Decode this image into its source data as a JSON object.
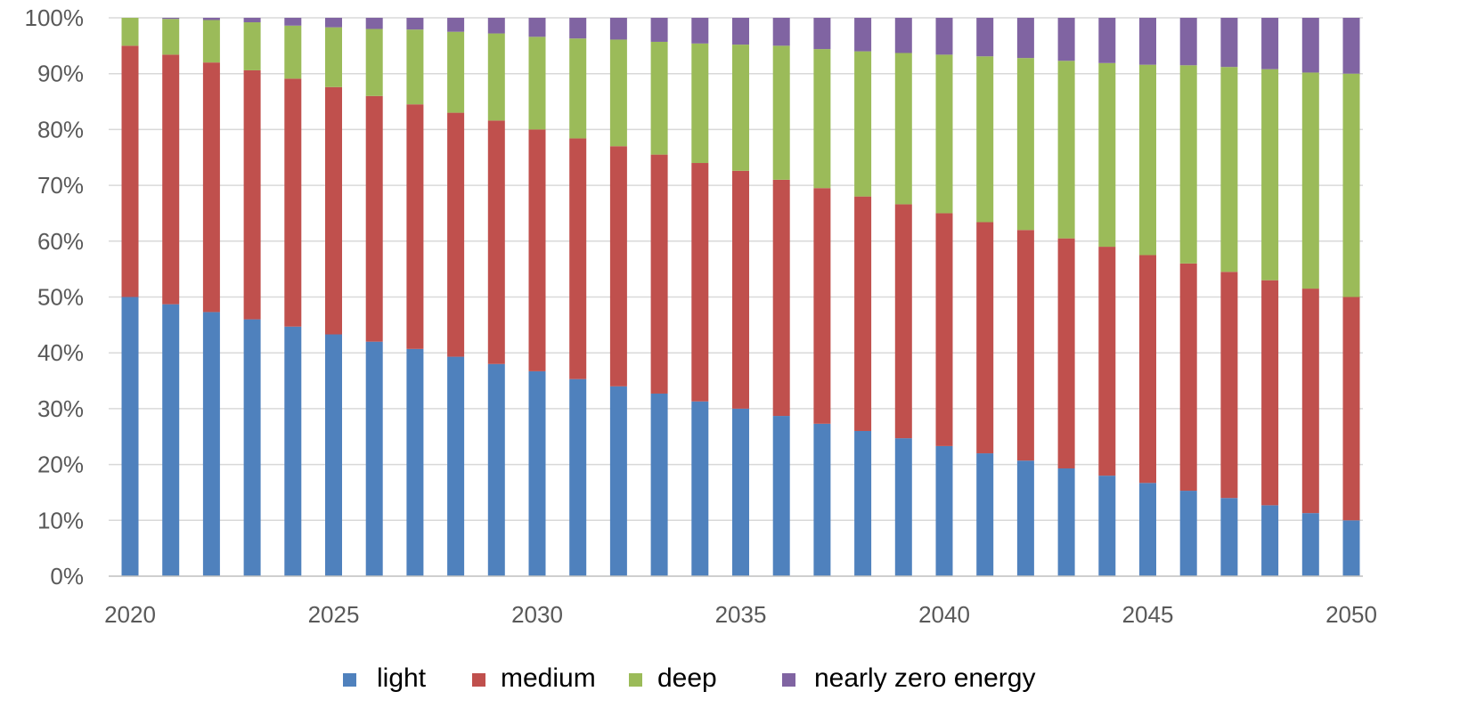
{
  "chart_data": {
    "type": "bar",
    "stacked": true,
    "percent_stacked": true,
    "x": [
      2020,
      2021,
      2022,
      2023,
      2024,
      2025,
      2026,
      2027,
      2028,
      2029,
      2030,
      2031,
      2032,
      2033,
      2034,
      2035,
      2036,
      2037,
      2038,
      2039,
      2040,
      2041,
      2042,
      2043,
      2044,
      2045,
      2046,
      2047,
      2048,
      2049,
      2050
    ],
    "x_tick_labels": [
      "2020",
      "2025",
      "2030",
      "2035",
      "2040",
      "2045",
      "2050"
    ],
    "y_tick_labels": [
      "0%",
      "10%",
      "20%",
      "30%",
      "40%",
      "50%",
      "60%",
      "70%",
      "80%",
      "90%",
      "100%"
    ],
    "ylim": [
      0,
      100
    ],
    "grid": "horizontal",
    "legend_position": "bottom",
    "series": [
      {
        "name": "light",
        "color": "#4F81BD",
        "values": [
          50.0,
          48.7,
          47.3,
          46.0,
          44.7,
          43.3,
          42.0,
          40.7,
          39.3,
          38.0,
          36.7,
          35.3,
          34.0,
          32.7,
          31.3,
          30.0,
          28.7,
          27.3,
          26.0,
          24.7,
          23.3,
          22.0,
          20.7,
          19.3,
          18.0,
          16.7,
          15.3,
          14.0,
          12.7,
          11.3,
          10.0
        ]
      },
      {
        "name": "medium",
        "color": "#C0504D",
        "values": [
          45.0,
          44.7,
          44.7,
          44.6,
          44.4,
          44.3,
          44.0,
          43.8,
          43.7,
          43.6,
          43.3,
          43.1,
          43.0,
          42.8,
          42.7,
          42.6,
          42.3,
          42.2,
          42.0,
          41.9,
          41.7,
          41.4,
          41.3,
          41.2,
          41.0,
          40.8,
          40.7,
          40.5,
          40.3,
          40.2,
          40.0
        ]
      },
      {
        "name": "deep",
        "color": "#9BBB59",
        "values": [
          5.0,
          6.4,
          7.6,
          8.6,
          9.5,
          10.7,
          12.0,
          13.4,
          14.5,
          15.6,
          16.6,
          17.9,
          19.1,
          20.2,
          21.4,
          22.6,
          24.0,
          24.9,
          26.0,
          27.1,
          28.4,
          29.7,
          30.8,
          31.8,
          32.9,
          34.1,
          35.5,
          36.7,
          37.8,
          38.7,
          40.0
        ]
      },
      {
        "name": "nearly zero energy",
        "color": "#8064A2",
        "values": [
          0.0,
          0.2,
          0.4,
          0.8,
          1.4,
          1.7,
          2.0,
          2.1,
          2.5,
          2.8,
          3.4,
          3.7,
          3.9,
          4.3,
          4.6,
          4.8,
          5.0,
          5.6,
          6.0,
          6.3,
          6.6,
          6.9,
          7.2,
          7.7,
          8.1,
          8.4,
          8.5,
          8.8,
          9.2,
          9.8,
          10.0
        ]
      }
    ]
  }
}
